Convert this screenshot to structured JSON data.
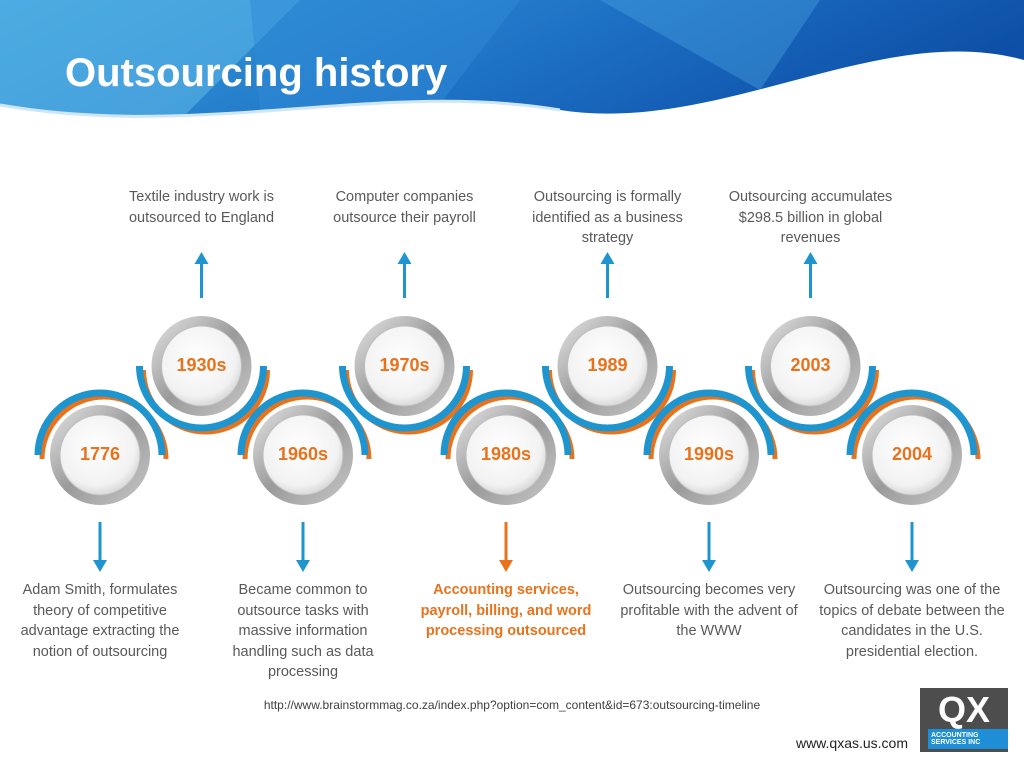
{
  "header": {
    "title": "Outsourcing history"
  },
  "milestones": [
    {
      "year": "1776",
      "text": "Adam Smith, formulates theory of competitive advantage extracting the notion of outsourcing",
      "position": "bottom",
      "highlighted": false
    },
    {
      "year": "1930s",
      "text": "Textile industry work is outsourced to England",
      "position": "top",
      "highlighted": false
    },
    {
      "year": "1960s",
      "text": "Became common to outsource tasks with massive information handling such as data processing",
      "position": "bottom",
      "highlighted": false
    },
    {
      "year": "1970s",
      "text": "Computer companies outsource their payroll",
      "position": "top",
      "highlighted": false
    },
    {
      "year": "1980s",
      "text": "Accounting services, payroll, billing, and word processing outsourced",
      "position": "bottom",
      "highlighted": true
    },
    {
      "year": "1989",
      "text": "Outsourcing is formally identified as a business strategy",
      "position": "top",
      "highlighted": false
    },
    {
      "year": "1990s",
      "text": "Outsourcing becomes very profitable with the advent of the WWW",
      "position": "bottom",
      "highlighted": false
    },
    {
      "year": "2003",
      "text": "Outsourcing accumulates $298.5 billion in global revenues",
      "position": "top",
      "highlighted": false
    },
    {
      "year": "2004",
      "text": "Outsourcing was one of the topics of debate between the candidates in the U.S. presidential election.",
      "position": "bottom",
      "highlighted": false
    }
  ],
  "footer": {
    "source": "http://www.brainstormmag.co.za/index.php?option=com_content&id=673:outsourcing-timeline",
    "website": "www.qxas.us.com"
  },
  "logo": {
    "mark": "QX",
    "tagline": "ACCOUNTING SERVICES INC"
  }
}
